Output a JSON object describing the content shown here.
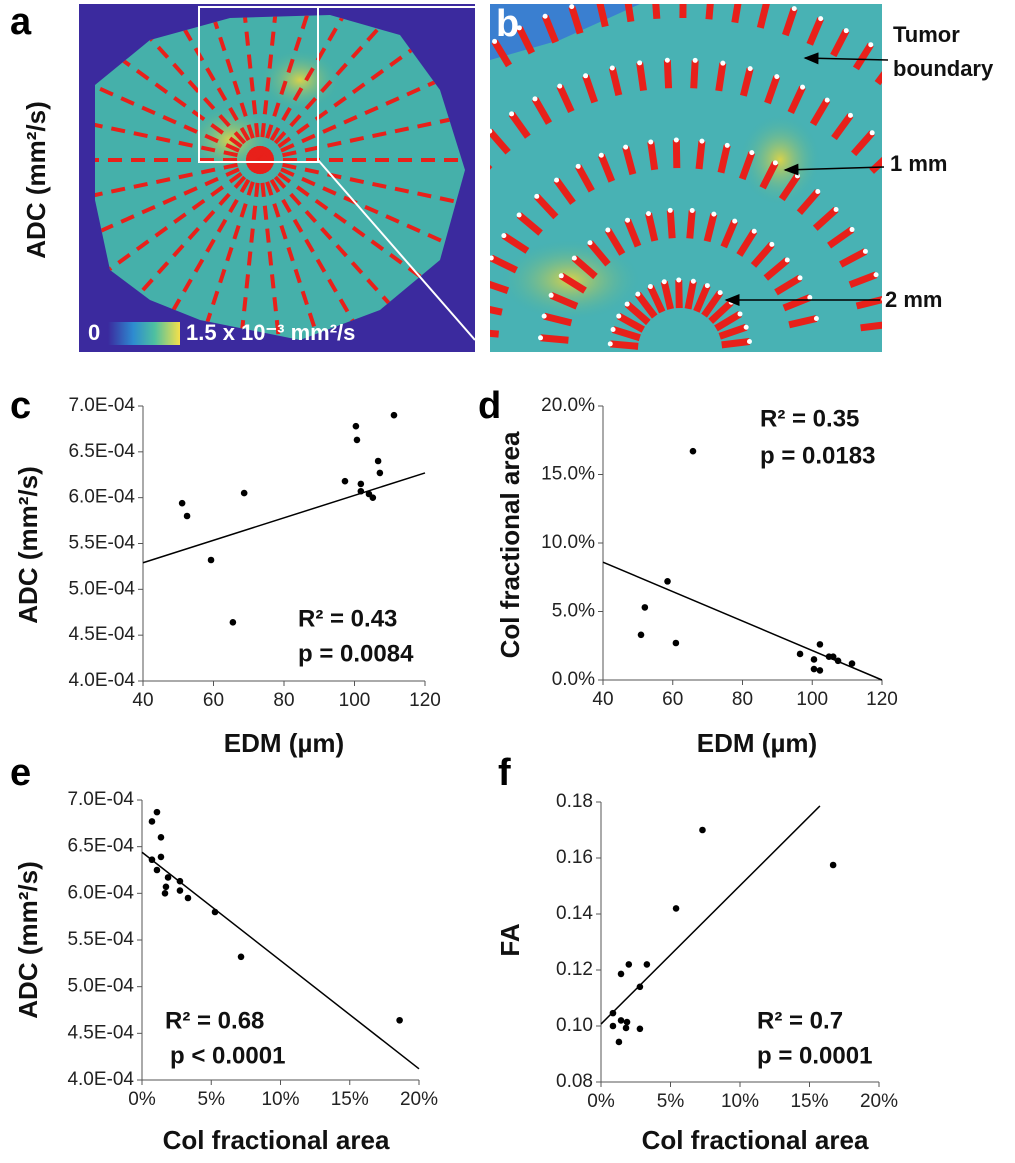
{
  "panels": {
    "a": {
      "label": "a",
      "ylabel": "ADC (mm²/s)",
      "colorbar_min": "0",
      "colorbar_max": "1.5 x 10⁻³ mm²/s"
    },
    "b": {
      "label": "b",
      "annotations": [
        "Tumor boundary",
        "1 mm",
        "2 mm"
      ]
    }
  },
  "chart_data": [
    {
      "type": "scatter",
      "panel": "c",
      "xlabel": "EDM (µm)",
      "ylabel": "ADC (mm²/s)",
      "annotations": [
        "R² = 0.43",
        "p = 0.0084"
      ],
      "x": [
        51.1,
        52.5,
        59.3,
        65.5,
        68.7,
        97.3,
        100.4,
        100.7,
        101.8,
        101.8,
        104.1,
        105.2,
        106.7,
        107.2,
        111.2
      ],
      "values": [
        0.000594,
        0.00058,
        0.000532,
        0.000464,
        0.000605,
        0.000618,
        0.000678,
        0.000663,
        0.000615,
        0.000607,
        0.000604,
        0.0006,
        0.00064,
        0.000627,
        0.00069
      ],
      "color": "#000000",
      "trendline": {
        "x": [
          40,
          120
        ],
        "y": [
          0.000529,
          0.000627
        ]
      },
      "xlim": [
        40,
        120
      ],
      "xticks": [
        40,
        60,
        80,
        100,
        120
      ],
      "ylim": [
        0.0004,
        0.0007
      ],
      "yticks": [
        {
          "value": 0.0004,
          "label": "4.0E-04"
        },
        {
          "value": 0.00045,
          "label": "4.5E-04"
        },
        {
          "value": 0.0005,
          "label": "5.0E-04"
        },
        {
          "value": 0.00055,
          "label": "5.5E-04"
        },
        {
          "value": 0.0006,
          "label": "6.0E-04"
        },
        {
          "value": 0.00065,
          "label": "6.5E-04"
        },
        {
          "value": 0.0007,
          "label": "7.0E-04"
        }
      ]
    },
    {
      "type": "scatter",
      "panel": "d",
      "xlabel": "EDM (µm)",
      "ylabel": "Col fractional area",
      "annotations": [
        "R² = 0.35",
        "p = 0.0183"
      ],
      "x": [
        65.8,
        58.5,
        52.0,
        50.9,
        60.9,
        96.5,
        100.5,
        100.5,
        102.2,
        102.2,
        104.8,
        106.0,
        107.4,
        111.4
      ],
      "values": [
        16.7,
        7.2,
        5.3,
        3.3,
        2.7,
        1.9,
        1.5,
        0.8,
        0.7,
        2.6,
        1.7,
        1.7,
        1.4,
        1.2
      ],
      "color": "#000000",
      "trendline": {
        "x": [
          40,
          120
        ],
        "y": [
          8.6,
          0
        ]
      },
      "xlim": [
        40,
        120
      ],
      "xticks": [
        40,
        60,
        80,
        100,
        120
      ],
      "ylim": [
        0,
        20
      ],
      "yticks": [
        {
          "value": 0,
          "label": "0.0%"
        },
        {
          "value": 5,
          "label": "5.0%"
        },
        {
          "value": 10,
          "label": "10.0%"
        },
        {
          "value": 15,
          "label": "15.0%"
        },
        {
          "value": 20,
          "label": "20.0%"
        }
      ]
    },
    {
      "type": "scatter",
      "panel": "e",
      "xlabel": "Col fractional area",
      "ylabel": "ADC (mm²/s)",
      "annotations": [
        "R² = 0.68",
        "p < 0.0001"
      ],
      "x": [
        1.08,
        0.72,
        1.37,
        1.37,
        1.08,
        0.72,
        1.88,
        1.66,
        1.73,
        2.74,
        2.74,
        3.32,
        5.27,
        7.15,
        18.6
      ],
      "values": [
        0.000687,
        0.000677,
        0.00066,
        0.000639,
        0.000625,
        0.000636,
        0.000617,
        0.0006,
        0.000607,
        0.000613,
        0.000603,
        0.000595,
        0.00058,
        0.000532,
        0.000464
      ],
      "color": "#000000",
      "trendline": {
        "x": [
          0,
          20
        ],
        "y": [
          0.000644,
          0.000412
        ]
      },
      "xlim": [
        0,
        20
      ],
      "xticks": [
        {
          "value": 0,
          "label": "0%"
        },
        {
          "value": 5,
          "label": "5%"
        },
        {
          "value": 10,
          "label": "10%"
        },
        {
          "value": 15,
          "label": "15%"
        },
        {
          "value": 20,
          "label": "20%"
        }
      ],
      "ylim": [
        0.0004,
        0.0007
      ],
      "yticks": [
        {
          "value": 0.0004,
          "label": "4.0E-04"
        },
        {
          "value": 0.00045,
          "label": "4.5E-04"
        },
        {
          "value": 0.0005,
          "label": "5.0E-04"
        },
        {
          "value": 0.00055,
          "label": "5.5E-04"
        },
        {
          "value": 0.0006,
          "label": "6.0E-04"
        },
        {
          "value": 0.00065,
          "label": "6.5E-04"
        },
        {
          "value": 0.0007,
          "label": "7.0E-04"
        }
      ]
    },
    {
      "type": "scatter",
      "panel": "f",
      "xlabel": "Col fractional area",
      "ylabel": "FA",
      "annotations": [
        "R² = 0.7",
        "p = 0.0001"
      ],
      "x": [
        0.86,
        0.86,
        1.29,
        1.44,
        1.44,
        1.87,
        1.8,
        2.0,
        2.8,
        2.8,
        3.3,
        5.4,
        7.3,
        16.7
      ],
      "values": [
        0.1046,
        0.1,
        0.0943,
        0.102,
        0.1186,
        0.1014,
        0.0993,
        0.122,
        0.114,
        0.099,
        0.122,
        0.142,
        0.17,
        0.1575
      ],
      "color": "#000000",
      "trendline": {
        "x": [
          0,
          15.75
        ],
        "y": [
          0.1007,
          0.1786
        ]
      },
      "xlim": [
        0,
        20
      ],
      "xticks": [
        {
          "value": 0,
          "label": "0%"
        },
        {
          "value": 5,
          "label": "5%"
        },
        {
          "value": 10,
          "label": "10%"
        },
        {
          "value": 15,
          "label": "15%"
        },
        {
          "value": 20,
          "label": "20%"
        }
      ],
      "ylim": [
        0.08,
        0.18
      ],
      "yticks": [
        0.08,
        {
          "value": 0.1,
          "label": "0.10"
        },
        0.12,
        0.14,
        0.16,
        0.18
      ]
    }
  ]
}
